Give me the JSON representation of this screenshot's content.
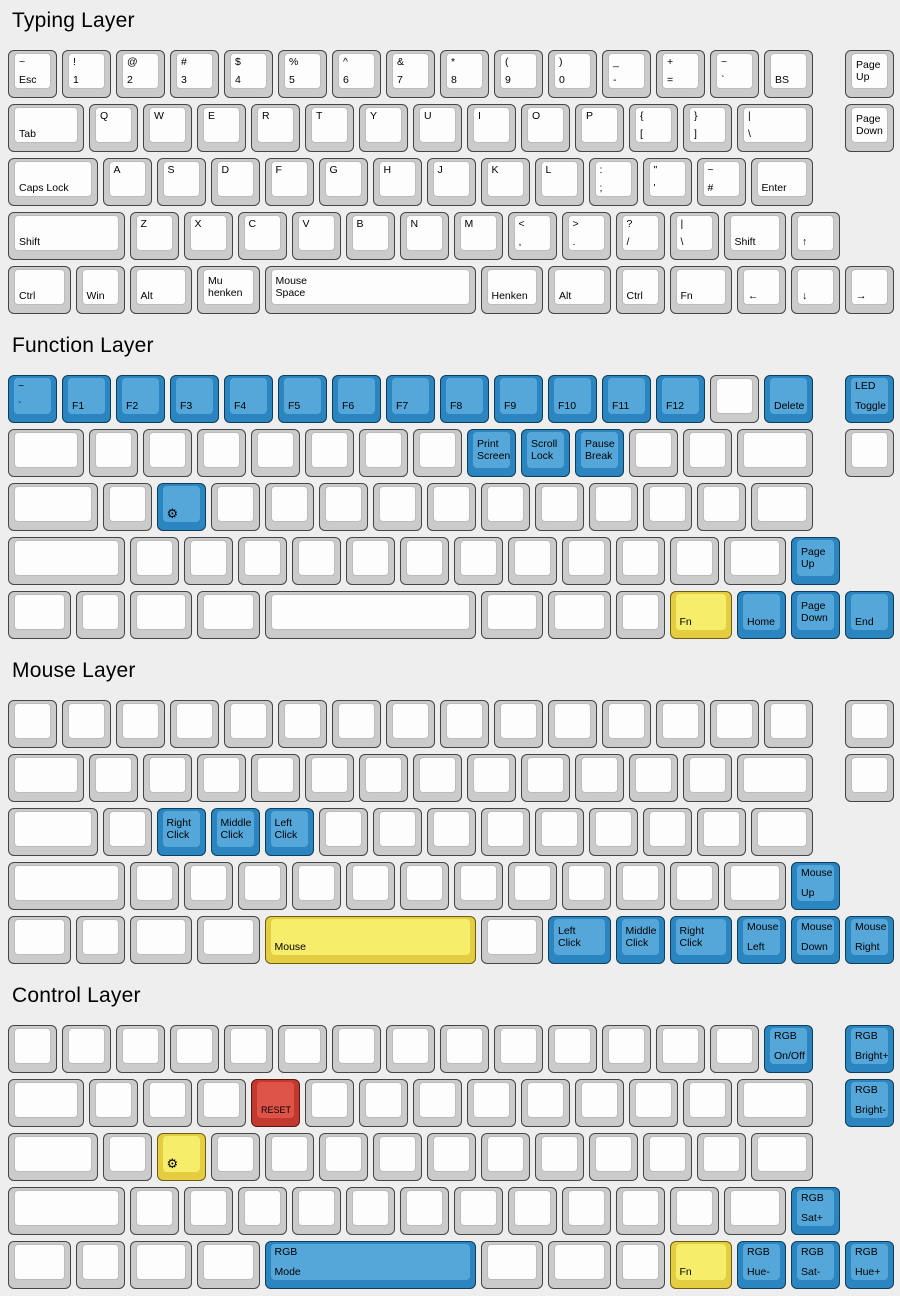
{
  "page": {
    "background": "#eeeeee"
  },
  "colors": {
    "legend": "#000000",
    "white": {
      "side": "#cbcbcb",
      "top": "#fdfdfd",
      "border": "#454545",
      "inner_border": "#bcbcbc"
    },
    "blue": {
      "side": "#2a85c1",
      "top": "#55a7da",
      "border": "#0e3e59"
    },
    "yellow": {
      "side": "#e4cd40",
      "top": "#f6ee6b",
      "border": "#6b5e12"
    },
    "red": {
      "side": "#c13a2d",
      "top": "#de5448",
      "border": "#581812"
    }
  },
  "keyboards": [
    {
      "title": "Typing Layer",
      "rows": [
        [
          {
            "t": "~",
            "b": "Esc"
          },
          {
            "t": "!",
            "b": "1"
          },
          {
            "t": "@",
            "b": "2"
          },
          {
            "t": "#",
            "b": "3"
          },
          {
            "t": "$",
            "b": "4"
          },
          {
            "t": "%",
            "b": "5"
          },
          {
            "t": "^",
            "b": "6"
          },
          {
            "t": "&",
            "b": "7"
          },
          {
            "t": "*",
            "b": "8"
          },
          {
            "t": "(",
            "b": "9"
          },
          {
            "t": ")",
            "b": "0"
          },
          {
            "t": "_",
            "b": "-",
            "n": "minus"
          },
          {
            "t": "+",
            "b": "=",
            "n": "equals"
          },
          {
            "t": "~",
            "b": "`",
            "n": "backquote"
          },
          {
            "b": "BS"
          },
          {
            "x": 15.5,
            "c": "Page\nUp"
          }
        ],
        [
          {
            "w": 1.5,
            "b": "Tab"
          },
          {
            "t": "Q"
          },
          {
            "t": "W"
          },
          {
            "t": "E"
          },
          {
            "t": "R"
          },
          {
            "t": "T"
          },
          {
            "t": "Y"
          },
          {
            "t": "U"
          },
          {
            "t": "I"
          },
          {
            "t": "O"
          },
          {
            "t": "P"
          },
          {
            "t": "{",
            "b": "[",
            "n": "left-bracket"
          },
          {
            "t": "}",
            "b": "]",
            "n": "right-bracket"
          },
          {
            "w": 1.5,
            "t": "|",
            "b": "\\",
            "n": "backslash"
          },
          {
            "x": 15.5,
            "c": "Page\nDown"
          }
        ],
        [
          {
            "w": 1.75,
            "b": "Caps Lock"
          },
          {
            "t": "A"
          },
          {
            "t": "S"
          },
          {
            "t": "D"
          },
          {
            "t": "F"
          },
          {
            "t": "G"
          },
          {
            "t": "H"
          },
          {
            "t": "J"
          },
          {
            "t": "K"
          },
          {
            "t": "L"
          },
          {
            "t": ":",
            "b": ";",
            "n": "semicolon"
          },
          {
            "t": "\"",
            "b": "'",
            "n": "quote"
          },
          {
            "t": "~",
            "b": "#",
            "n": "hash"
          },
          {
            "w": 1.25,
            "b": "Enter"
          }
        ],
        [
          {
            "w": 2.25,
            "b": "Shift"
          },
          {
            "t": "Z"
          },
          {
            "t": "X"
          },
          {
            "t": "C"
          },
          {
            "t": "V"
          },
          {
            "t": "B"
          },
          {
            "t": "N"
          },
          {
            "t": "M"
          },
          {
            "t": "<",
            "b": ",",
            "n": "comma"
          },
          {
            "t": ">",
            "b": ".",
            "n": "period"
          },
          {
            "t": "?",
            "b": "/",
            "n": "slash"
          },
          {
            "t": "|",
            "b": "\\",
            "n": "backslash"
          },
          {
            "w": 1.25,
            "b": "Shift"
          },
          {
            "b": "↑",
            "n": "arrow-up"
          }
        ],
        [
          {
            "w": 1.25,
            "b": "Ctrl"
          },
          {
            "b": "Win"
          },
          {
            "w": 1.25,
            "b": "Alt"
          },
          {
            "w": 1.25,
            "c": "Mu\nhenken"
          },
          {
            "w": 4,
            "c": "Mouse\nSpace"
          },
          {
            "w": 1.25,
            "b": "Henken"
          },
          {
            "w": 1.25,
            "b": "Alt"
          },
          {
            "b": "Ctrl"
          },
          {
            "w": 1.25,
            "b": "Fn"
          },
          {
            "b": "←",
            "n": "arrow-left"
          },
          {
            "b": "↓",
            "n": "arrow-down"
          },
          {
            "x": 15.5,
            "b": "→",
            "n": "arrow-right"
          }
        ]
      ]
    },
    {
      "title": "Function Layer",
      "rows": [
        [
          {
            "color": "blue",
            "t": "~",
            "b": "`",
            "n": "backquote"
          },
          {
            "color": "blue",
            "b": "F1"
          },
          {
            "color": "blue",
            "b": "F2"
          },
          {
            "color": "blue",
            "b": "F3"
          },
          {
            "color": "blue",
            "b": "F4"
          },
          {
            "color": "blue",
            "b": "F5"
          },
          {
            "color": "blue",
            "b": "F6"
          },
          {
            "color": "blue",
            "b": "F7"
          },
          {
            "color": "blue",
            "b": "F8"
          },
          {
            "color": "blue",
            "b": "F9"
          },
          {
            "color": "blue",
            "b": "F10"
          },
          {
            "color": "blue",
            "b": "F11"
          },
          {
            "color": "blue",
            "b": "F12"
          },
          {},
          {
            "color": "blue",
            "b": "Delete"
          },
          {
            "x": 15.5,
            "color": "blue",
            "t": "LED",
            "b": "Toggle",
            "n": "led-toggle"
          }
        ],
        [
          {
            "w": 1.5
          },
          {},
          {},
          {},
          {},
          {},
          {},
          {},
          {
            "color": "blue",
            "c": "Print\nScreen"
          },
          {
            "color": "blue",
            "c": "Scroll\nLock"
          },
          {
            "color": "blue",
            "c": "Pause\nBreak"
          },
          {},
          {},
          {
            "w": 1.5
          },
          {
            "x": 15.5
          }
        ],
        [
          {
            "w": 1.75
          },
          {},
          {
            "color": "blue",
            "b": "⚙",
            "icon": "gear",
            "n": "gear"
          },
          {},
          {},
          {},
          {},
          {},
          {},
          {},
          {},
          {},
          {},
          {
            "w": 1.25
          }
        ],
        [
          {
            "w": 2.25
          },
          {},
          {},
          {},
          {},
          {},
          {},
          {},
          {},
          {},
          {},
          {},
          {
            "w": 1.25
          },
          {
            "color": "blue",
            "c": "Page\nUp"
          }
        ],
        [
          {
            "w": 1.25
          },
          {},
          {
            "w": 1.25
          },
          {
            "w": 1.25
          },
          {
            "w": 4
          },
          {
            "w": 1.25
          },
          {
            "w": 1.25
          },
          {},
          {
            "w": 1.25,
            "color": "yellow",
            "b": "Fn"
          },
          {
            "color": "blue",
            "b": "Home"
          },
          {
            "color": "blue",
            "c": "Page\nDown"
          },
          {
            "x": 15.5,
            "color": "blue",
            "b": "End"
          }
        ]
      ]
    },
    {
      "title": "Mouse Layer",
      "rows": [
        [
          {},
          {},
          {},
          {},
          {},
          {},
          {},
          {},
          {},
          {},
          {},
          {},
          {},
          {},
          {},
          {
            "x": 15.5
          }
        ],
        [
          {
            "w": 1.5
          },
          {},
          {},
          {},
          {},
          {},
          {},
          {},
          {},
          {},
          {},
          {},
          {},
          {
            "w": 1.5
          },
          {
            "x": 15.5
          }
        ],
        [
          {
            "w": 1.75
          },
          {},
          {
            "color": "blue",
            "c": "Right\nClick"
          },
          {
            "color": "blue",
            "c": "Middle\nClick"
          },
          {
            "color": "blue",
            "c": "Left\nClick"
          },
          {},
          {},
          {},
          {},
          {},
          {},
          {},
          {},
          {
            "w": 1.25
          }
        ],
        [
          {
            "w": 2.25
          },
          {},
          {},
          {},
          {},
          {},
          {},
          {},
          {},
          {},
          {},
          {},
          {
            "w": 1.25
          },
          {
            "color": "blue",
            "t": "Mouse",
            "b": "Up",
            "n": "mouse-up"
          }
        ],
        [
          {
            "w": 1.25
          },
          {},
          {
            "w": 1.25
          },
          {
            "w": 1.25
          },
          {
            "w": 4,
            "color": "yellow",
            "b": "Mouse",
            "n": "mouse-space"
          },
          {
            "w": 1.25
          },
          {
            "w": 1.25,
            "color": "blue",
            "c": "Left\nClick"
          },
          {
            "color": "blue",
            "c": "Middle\nClick"
          },
          {
            "w": 1.25,
            "color": "blue",
            "c": "Right\nClick"
          },
          {
            "color": "blue",
            "t": "Mouse",
            "b": "Left",
            "n": "mouse-left"
          },
          {
            "color": "blue",
            "t": "Mouse",
            "b": "Down",
            "n": "mouse-down"
          },
          {
            "x": 15.5,
            "color": "blue",
            "t": "Mouse",
            "b": "Right",
            "n": "mouse-right"
          }
        ]
      ]
    },
    {
      "title": "Control Layer",
      "rows": [
        [
          {},
          {},
          {},
          {},
          {},
          {},
          {},
          {},
          {},
          {},
          {},
          {},
          {},
          {},
          {
            "color": "blue",
            "t": "RGB",
            "b": "On/Off",
            "n": "rgb-on-off"
          },
          {
            "x": 15.5,
            "color": "blue",
            "t": "RGB",
            "b": "Bright+",
            "n": "rgb-bright-plus"
          }
        ],
        [
          {
            "w": 1.5
          },
          {},
          {},
          {},
          {
            "color": "red",
            "b": "RESET",
            "small": true,
            "n": "reset"
          },
          {},
          {},
          {},
          {},
          {},
          {},
          {},
          {},
          {
            "w": 1.5
          },
          {
            "x": 15.5,
            "color": "blue",
            "t": "RGB",
            "b": "Bright-",
            "n": "rgb-bright-minus"
          }
        ],
        [
          {
            "w": 1.75
          },
          {},
          {
            "color": "yellow",
            "b": "⚙",
            "icon": "gear",
            "n": "gear"
          },
          {},
          {},
          {},
          {},
          {},
          {},
          {},
          {},
          {},
          {},
          {
            "w": 1.25
          }
        ],
        [
          {
            "w": 2.25
          },
          {},
          {},
          {},
          {},
          {},
          {},
          {},
          {},
          {},
          {},
          {},
          {
            "w": 1.25
          },
          {
            "color": "blue",
            "t": "RGB",
            "b": "Sat+",
            "n": "rgb-sat-plus"
          }
        ],
        [
          {
            "w": 1.25
          },
          {},
          {
            "w": 1.25
          },
          {
            "w": 1.25
          },
          {
            "w": 4,
            "color": "blue",
            "t": "RGB",
            "b": "Mode",
            "n": "rgb-mode"
          },
          {
            "w": 1.25
          },
          {
            "w": 1.25
          },
          {},
          {
            "w": 1.25,
            "color": "yellow",
            "b": "Fn"
          },
          {
            "color": "blue",
            "t": "RGB",
            "b": "Hue-",
            "n": "rgb-hue-minus"
          },
          {
            "color": "blue",
            "t": "RGB",
            "b": "Sat-",
            "n": "rgb-sat-minus"
          },
          {
            "x": 15.5,
            "color": "blue",
            "t": "RGB",
            "b": "Hue+",
            "n": "rgb-hue-plus"
          }
        ]
      ]
    }
  ]
}
